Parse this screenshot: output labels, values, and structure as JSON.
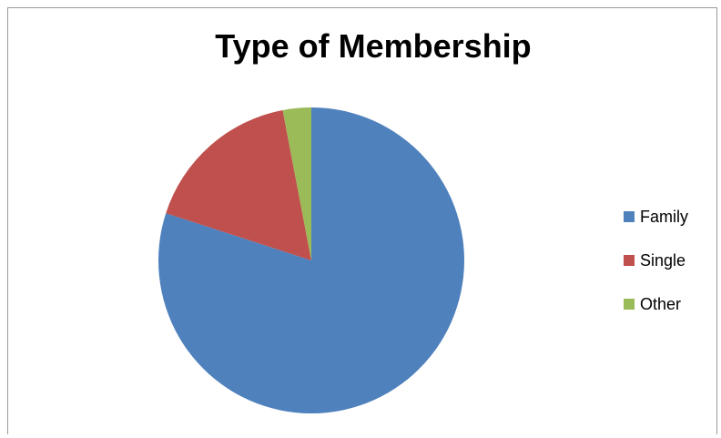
{
  "chart_data": {
    "type": "pie",
    "title": "Type of Membership",
    "categories": [
      "Family",
      "Single",
      "Other"
    ],
    "values": [
      80,
      17,
      3
    ],
    "colors": [
      "#4f81bd",
      "#c0504d",
      "#9bbb59"
    ],
    "legend_position": "right"
  }
}
